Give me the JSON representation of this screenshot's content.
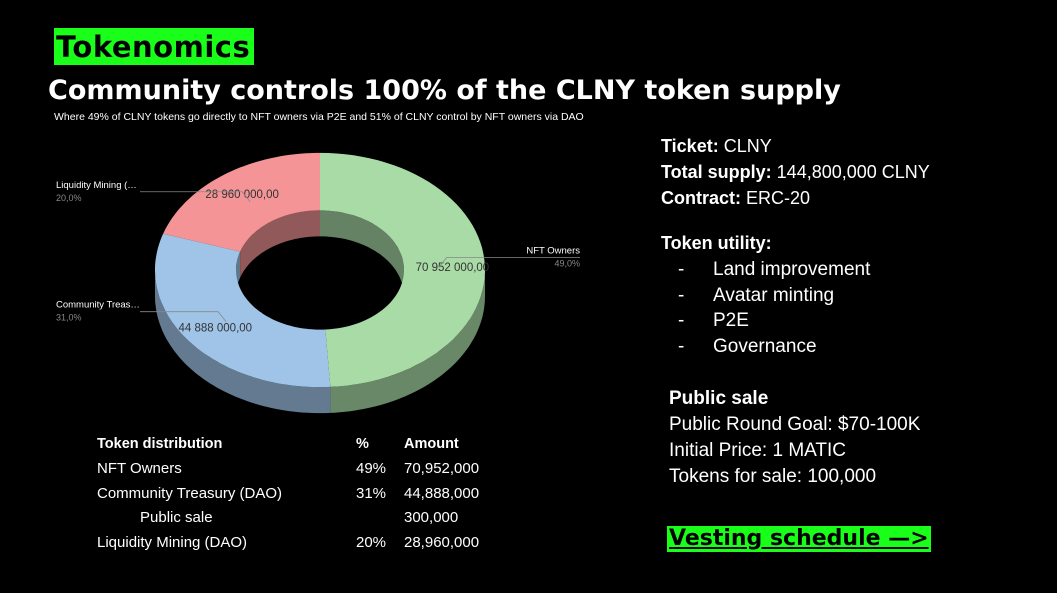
{
  "header": {
    "tag": "Tokenomics",
    "headline": "Community controls 100% of the CLNY token supply",
    "subline": "Where 49% of CLNY tokens go directly to NFT owners via P2E and 51% of CLNY control by NFT owners via DAO"
  },
  "chart_data": {
    "type": "pie",
    "variant": "3d-donut",
    "slices": [
      {
        "label": "NFT Owners",
        "value": 70952000,
        "value_label": "70 952 000,00",
        "percent_label": "49,0%",
        "color": "#a9dba6"
      },
      {
        "label": "Community Treas…",
        "value": 44888000,
        "value_label": "44 888 000,00",
        "percent_label": "31,0%",
        "color": "#9fc4e8"
      },
      {
        "label": "Liquidity Mining (…",
        "value": 28960000,
        "value_label": "28 960 000,00",
        "percent_label": "20,0%",
        "color": "#f49496"
      }
    ]
  },
  "distribution": {
    "headers": [
      "Token distribution",
      "%",
      "Amount"
    ],
    "rows": [
      {
        "name": "NFT Owners",
        "pct": "49%",
        "amount": "70,952,000"
      },
      {
        "name": "Community Treasury (DAO)",
        "pct": "31%",
        "amount": "44,888,000"
      },
      {
        "name": "Public sale",
        "pct": "",
        "amount": "300,000"
      },
      {
        "name": "Liquidity Mining (DAO)",
        "pct": "20%",
        "amount": "28,960,000"
      }
    ]
  },
  "info": {
    "ticket_label": "Ticket:",
    "ticket_value": " CLNY",
    "supply_label": "Total supply:",
    "supply_value": " 144,800,000 CLNY",
    "contract_label": "Contract:",
    "contract_value": " ERC-20"
  },
  "utility": {
    "title": "Token utility:",
    "items": [
      "Land improvement",
      "Avatar minting",
      "P2E",
      "Governance"
    ]
  },
  "public_sale": {
    "title": "Public sale",
    "goal": "Public Round Goal: $70-100K",
    "price": "Initial Price: 1 MATIC",
    "tokens": "Tokens for sale: 100,000"
  },
  "vesting_link": "Vesting schedule —>"
}
